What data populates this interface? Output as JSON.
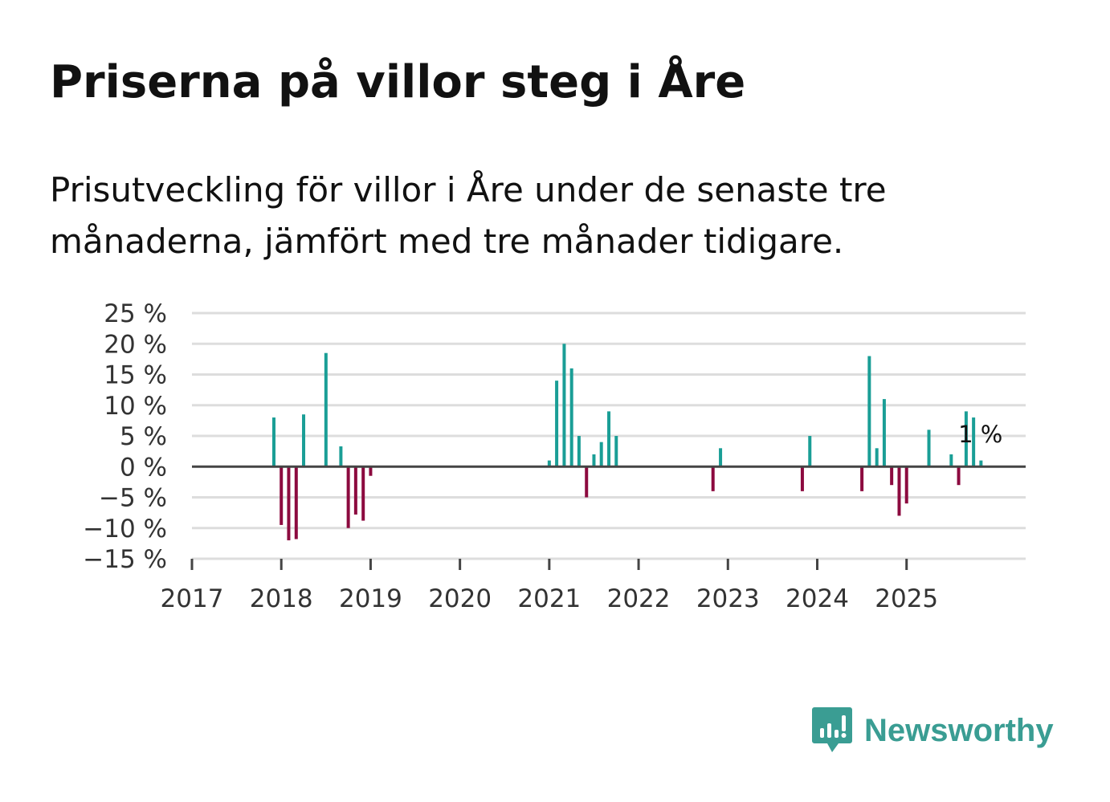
{
  "title": "Priserna på villor steg i Åre",
  "subtitle": "Prisutveckling för villor i Åre under de senaste tre månaderna, jämfört med tre månader tidigare.",
  "brand": {
    "name": "Newsworthy",
    "icon": "newsworthy-logo-icon",
    "color": "#3a9d93"
  },
  "colors": {
    "positive": "#1a9e96",
    "negative": "#8c0a3f",
    "baseline": "#444444",
    "grid": "#dddddd"
  },
  "chart_data": {
    "type": "bar",
    "title": "Priserna på villor steg i Åre",
    "xlabel": "",
    "ylabel": "",
    "ylim": [
      -15,
      25
    ],
    "y_ticks": [
      {
        "value": 25,
        "label": "25 %"
      },
      {
        "value": 20,
        "label": "20 %"
      },
      {
        "value": 15,
        "label": "15 %"
      },
      {
        "value": 10,
        "label": "10 %"
      },
      {
        "value": 5,
        "label": "5 %"
      },
      {
        "value": 0,
        "label": "0 %"
      },
      {
        "value": -5,
        "label": "−5 %"
      },
      {
        "value": -10,
        "label": "−10 %"
      },
      {
        "value": -15,
        "label": "−15 %"
      }
    ],
    "x_range": [
      2017,
      2026.3333
    ],
    "x_ticks": [
      {
        "value": 2017,
        "label": "2017"
      },
      {
        "value": 2018,
        "label": "2018"
      },
      {
        "value": 2019,
        "label": "2019"
      },
      {
        "value": 2020,
        "label": "2020"
      },
      {
        "value": 2021,
        "label": "2021"
      },
      {
        "value": 2022,
        "label": "2022"
      },
      {
        "value": 2023,
        "label": "2023"
      },
      {
        "value": 2024,
        "label": "2024"
      },
      {
        "value": 2025,
        "label": "2025"
      }
    ],
    "grid": true,
    "last_value_label": "1 %",
    "series": [
      {
        "name": "Prisutveckling",
        "points": [
          {
            "x": 2017.917,
            "value": 8
          },
          {
            "x": 2018.0,
            "value": -9.5
          },
          {
            "x": 2018.083,
            "value": -12
          },
          {
            "x": 2018.167,
            "value": -11.8
          },
          {
            "x": 2018.25,
            "value": 8.5
          },
          {
            "x": 2018.5,
            "value": 18.5
          },
          {
            "x": 2018.667,
            "value": 3.3
          },
          {
            "x": 2018.75,
            "value": -10
          },
          {
            "x": 2018.833,
            "value": -7.8
          },
          {
            "x": 2018.917,
            "value": -8.8
          },
          {
            "x": 2019.0,
            "value": -1.5
          },
          {
            "x": 2021.0,
            "value": 1
          },
          {
            "x": 2021.083,
            "value": 14
          },
          {
            "x": 2021.167,
            "value": 20
          },
          {
            "x": 2021.25,
            "value": 16
          },
          {
            "x": 2021.333,
            "value": 5
          },
          {
            "x": 2021.417,
            "value": -5
          },
          {
            "x": 2021.5,
            "value": 2
          },
          {
            "x": 2021.583,
            "value": 4
          },
          {
            "x": 2021.667,
            "value": 9
          },
          {
            "x": 2021.75,
            "value": 5
          },
          {
            "x": 2022.833,
            "value": -4
          },
          {
            "x": 2022.917,
            "value": 3
          },
          {
            "x": 2023.833,
            "value": -4
          },
          {
            "x": 2023.917,
            "value": 5
          },
          {
            "x": 2024.5,
            "value": -4
          },
          {
            "x": 2024.583,
            "value": 18
          },
          {
            "x": 2024.667,
            "value": 3
          },
          {
            "x": 2024.75,
            "value": 11
          },
          {
            "x": 2024.833,
            "value": -3
          },
          {
            "x": 2024.917,
            "value": -8
          },
          {
            "x": 2025.0,
            "value": -6
          },
          {
            "x": 2025.25,
            "value": 6
          },
          {
            "x": 2025.5,
            "value": 2
          },
          {
            "x": 2025.583,
            "value": -3
          },
          {
            "x": 2025.667,
            "value": 9
          },
          {
            "x": 2025.75,
            "value": 8
          },
          {
            "x": 2025.833,
            "value": 1
          }
        ]
      }
    ]
  }
}
